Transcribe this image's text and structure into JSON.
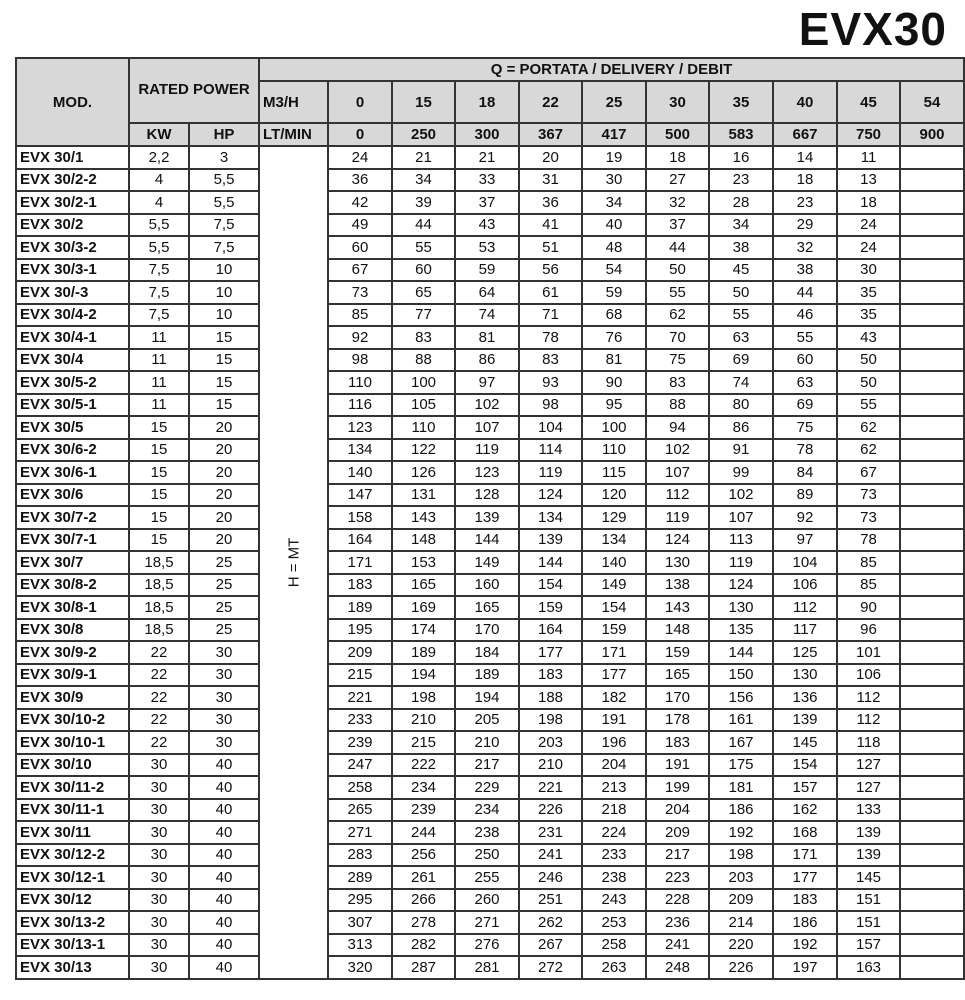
{
  "title": "EVX30",
  "headers": {
    "mod": "MOD.",
    "rated_power": "RATED POWER",
    "q_header": "Q = PORTATA / DELIVERY / DEBIT",
    "m3h": "M3/H",
    "ltmin": "LT/MIN",
    "kw": "KW",
    "hp": "HP",
    "h_unit": "H = MT",
    "m3h_values": [
      "0",
      "15",
      "18",
      "22",
      "25",
      "30",
      "35",
      "40",
      "45",
      "54"
    ],
    "ltmin_values": [
      "0",
      "250",
      "300",
      "367",
      "417",
      "500",
      "583",
      "667",
      "750",
      "900"
    ]
  },
  "rows": [
    {
      "mod": "EVX 30/1",
      "kw": "2,2",
      "hp": "3",
      "h": [
        "24",
        "21",
        "21",
        "20",
        "19",
        "18",
        "16",
        "14",
        "11",
        ""
      ]
    },
    {
      "mod": "EVX 30/2-2",
      "kw": "4",
      "hp": "5,5",
      "h": [
        "36",
        "34",
        "33",
        "31",
        "30",
        "27",
        "23",
        "18",
        "13",
        ""
      ]
    },
    {
      "mod": "EVX 30/2-1",
      "kw": "4",
      "hp": "5,5",
      "h": [
        "42",
        "39",
        "37",
        "36",
        "34",
        "32",
        "28",
        "23",
        "18",
        ""
      ]
    },
    {
      "mod": "EVX 30/2",
      "kw": "5,5",
      "hp": "7,5",
      "h": [
        "49",
        "44",
        "43",
        "41",
        "40",
        "37",
        "34",
        "29",
        "24",
        ""
      ]
    },
    {
      "mod": "EVX 30/3-2",
      "kw": "5,5",
      "hp": "7,5",
      "h": [
        "60",
        "55",
        "53",
        "51",
        "48",
        "44",
        "38",
        "32",
        "24",
        ""
      ]
    },
    {
      "mod": "EVX 30/3-1",
      "kw": "7,5",
      "hp": "10",
      "h": [
        "67",
        "60",
        "59",
        "56",
        "54",
        "50",
        "45",
        "38",
        "30",
        ""
      ]
    },
    {
      "mod": "EVX 30/-3",
      "kw": "7,5",
      "hp": "10",
      "h": [
        "73",
        "65",
        "64",
        "61",
        "59",
        "55",
        "50",
        "44",
        "35",
        ""
      ]
    },
    {
      "mod": "EVX 30/4-2",
      "kw": "7,5",
      "hp": "10",
      "h": [
        "85",
        "77",
        "74",
        "71",
        "68",
        "62",
        "55",
        "46",
        "35",
        ""
      ]
    },
    {
      "mod": "EVX 30/4-1",
      "kw": "11",
      "hp": "15",
      "h": [
        "92",
        "83",
        "81",
        "78",
        "76",
        "70",
        "63",
        "55",
        "43",
        ""
      ]
    },
    {
      "mod": "EVX 30/4",
      "kw": "11",
      "hp": "15",
      "h": [
        "98",
        "88",
        "86",
        "83",
        "81",
        "75",
        "69",
        "60",
        "50",
        ""
      ]
    },
    {
      "mod": "EVX 30/5-2",
      "kw": "11",
      "hp": "15",
      "h": [
        "110",
        "100",
        "97",
        "93",
        "90",
        "83",
        "74",
        "63",
        "50",
        ""
      ]
    },
    {
      "mod": "EVX 30/5-1",
      "kw": "11",
      "hp": "15",
      "h": [
        "116",
        "105",
        "102",
        "98",
        "95",
        "88",
        "80",
        "69",
        "55",
        ""
      ]
    },
    {
      "mod": "EVX 30/5",
      "kw": "15",
      "hp": "20",
      "h": [
        "123",
        "110",
        "107",
        "104",
        "100",
        "94",
        "86",
        "75",
        "62",
        ""
      ]
    },
    {
      "mod": "EVX 30/6-2",
      "kw": "15",
      "hp": "20",
      "h": [
        "134",
        "122",
        "119",
        "114",
        "110",
        "102",
        "91",
        "78",
        "62",
        ""
      ]
    },
    {
      "mod": "EVX 30/6-1",
      "kw": "15",
      "hp": "20",
      "h": [
        "140",
        "126",
        "123",
        "119",
        "115",
        "107",
        "99",
        "84",
        "67",
        ""
      ]
    },
    {
      "mod": "EVX 30/6",
      "kw": "15",
      "hp": "20",
      "h": [
        "147",
        "131",
        "128",
        "124",
        "120",
        "112",
        "102",
        "89",
        "73",
        ""
      ]
    },
    {
      "mod": "EVX 30/7-2",
      "kw": "15",
      "hp": "20",
      "h": [
        "158",
        "143",
        "139",
        "134",
        "129",
        "119",
        "107",
        "92",
        "73",
        ""
      ]
    },
    {
      "mod": "EVX 30/7-1",
      "kw": "15",
      "hp": "20",
      "h": [
        "164",
        "148",
        "144",
        "139",
        "134",
        "124",
        "113",
        "97",
        "78",
        ""
      ]
    },
    {
      "mod": "EVX 30/7",
      "kw": "18,5",
      "hp": "25",
      "h": [
        "171",
        "153",
        "149",
        "144",
        "140",
        "130",
        "119",
        "104",
        "85",
        ""
      ]
    },
    {
      "mod": "EVX 30/8-2",
      "kw": "18,5",
      "hp": "25",
      "h": [
        "183",
        "165",
        "160",
        "154",
        "149",
        "138",
        "124",
        "106",
        "85",
        ""
      ]
    },
    {
      "mod": "EVX 30/8-1",
      "kw": "18,5",
      "hp": "25",
      "h": [
        "189",
        "169",
        "165",
        "159",
        "154",
        "143",
        "130",
        "112",
        "90",
        ""
      ]
    },
    {
      "mod": "EVX 30/8",
      "kw": "18,5",
      "hp": "25",
      "h": [
        "195",
        "174",
        "170",
        "164",
        "159",
        "148",
        "135",
        "117",
        "96",
        ""
      ]
    },
    {
      "mod": "EVX 30/9-2",
      "kw": "22",
      "hp": "30",
      "h": [
        "209",
        "189",
        "184",
        "177",
        "171",
        "159",
        "144",
        "125",
        "101",
        ""
      ]
    },
    {
      "mod": "EVX 30/9-1",
      "kw": "22",
      "hp": "30",
      "h": [
        "215",
        "194",
        "189",
        "183",
        "177",
        "165",
        "150",
        "130",
        "106",
        ""
      ]
    },
    {
      "mod": "EVX 30/9",
      "kw": "22",
      "hp": "30",
      "h": [
        "221",
        "198",
        "194",
        "188",
        "182",
        "170",
        "156",
        "136",
        "112",
        ""
      ]
    },
    {
      "mod": "EVX 30/10-2",
      "kw": "22",
      "hp": "30",
      "h": [
        "233",
        "210",
        "205",
        "198",
        "191",
        "178",
        "161",
        "139",
        "112",
        ""
      ]
    },
    {
      "mod": "EVX 30/10-1",
      "kw": "22",
      "hp": "30",
      "h": [
        "239",
        "215",
        "210",
        "203",
        "196",
        "183",
        "167",
        "145",
        "118",
        ""
      ]
    },
    {
      "mod": "EVX 30/10",
      "kw": "30",
      "hp": "40",
      "h": [
        "247",
        "222",
        "217",
        "210",
        "204",
        "191",
        "175",
        "154",
        "127",
        ""
      ]
    },
    {
      "mod": "EVX 30/11-2",
      "kw": "30",
      "hp": "40",
      "h": [
        "258",
        "234",
        "229",
        "221",
        "213",
        "199",
        "181",
        "157",
        "127",
        ""
      ]
    },
    {
      "mod": "EVX 30/11-1",
      "kw": "30",
      "hp": "40",
      "h": [
        "265",
        "239",
        "234",
        "226",
        "218",
        "204",
        "186",
        "162",
        "133",
        ""
      ]
    },
    {
      "mod": "EVX 30/11",
      "kw": "30",
      "hp": "40",
      "h": [
        "271",
        "244",
        "238",
        "231",
        "224",
        "209",
        "192",
        "168",
        "139",
        ""
      ]
    },
    {
      "mod": "EVX 30/12-2",
      "kw": "30",
      "hp": "40",
      "h": [
        "283",
        "256",
        "250",
        "241",
        "233",
        "217",
        "198",
        "171",
        "139",
        ""
      ]
    },
    {
      "mod": "EVX 30/12-1",
      "kw": "30",
      "hp": "40",
      "h": [
        "289",
        "261",
        "255",
        "246",
        "238",
        "223",
        "203",
        "177",
        "145",
        ""
      ]
    },
    {
      "mod": "EVX 30/12",
      "kw": "30",
      "hp": "40",
      "h": [
        "295",
        "266",
        "260",
        "251",
        "243",
        "228",
        "209",
        "183",
        "151",
        ""
      ]
    },
    {
      "mod": "EVX 30/13-2",
      "kw": "30",
      "hp": "40",
      "h": [
        "307",
        "278",
        "271",
        "262",
        "253",
        "236",
        "214",
        "186",
        "151",
        ""
      ]
    },
    {
      "mod": "EVX 30/13-1",
      "kw": "30",
      "hp": "40",
      "h": [
        "313",
        "282",
        "276",
        "267",
        "258",
        "241",
        "220",
        "192",
        "157",
        ""
      ]
    },
    {
      "mod": "EVX 30/13",
      "kw": "30",
      "hp": "40",
      "h": [
        "320",
        "287",
        "281",
        "272",
        "263",
        "248",
        "226",
        "197",
        "163",
        ""
      ]
    }
  ]
}
